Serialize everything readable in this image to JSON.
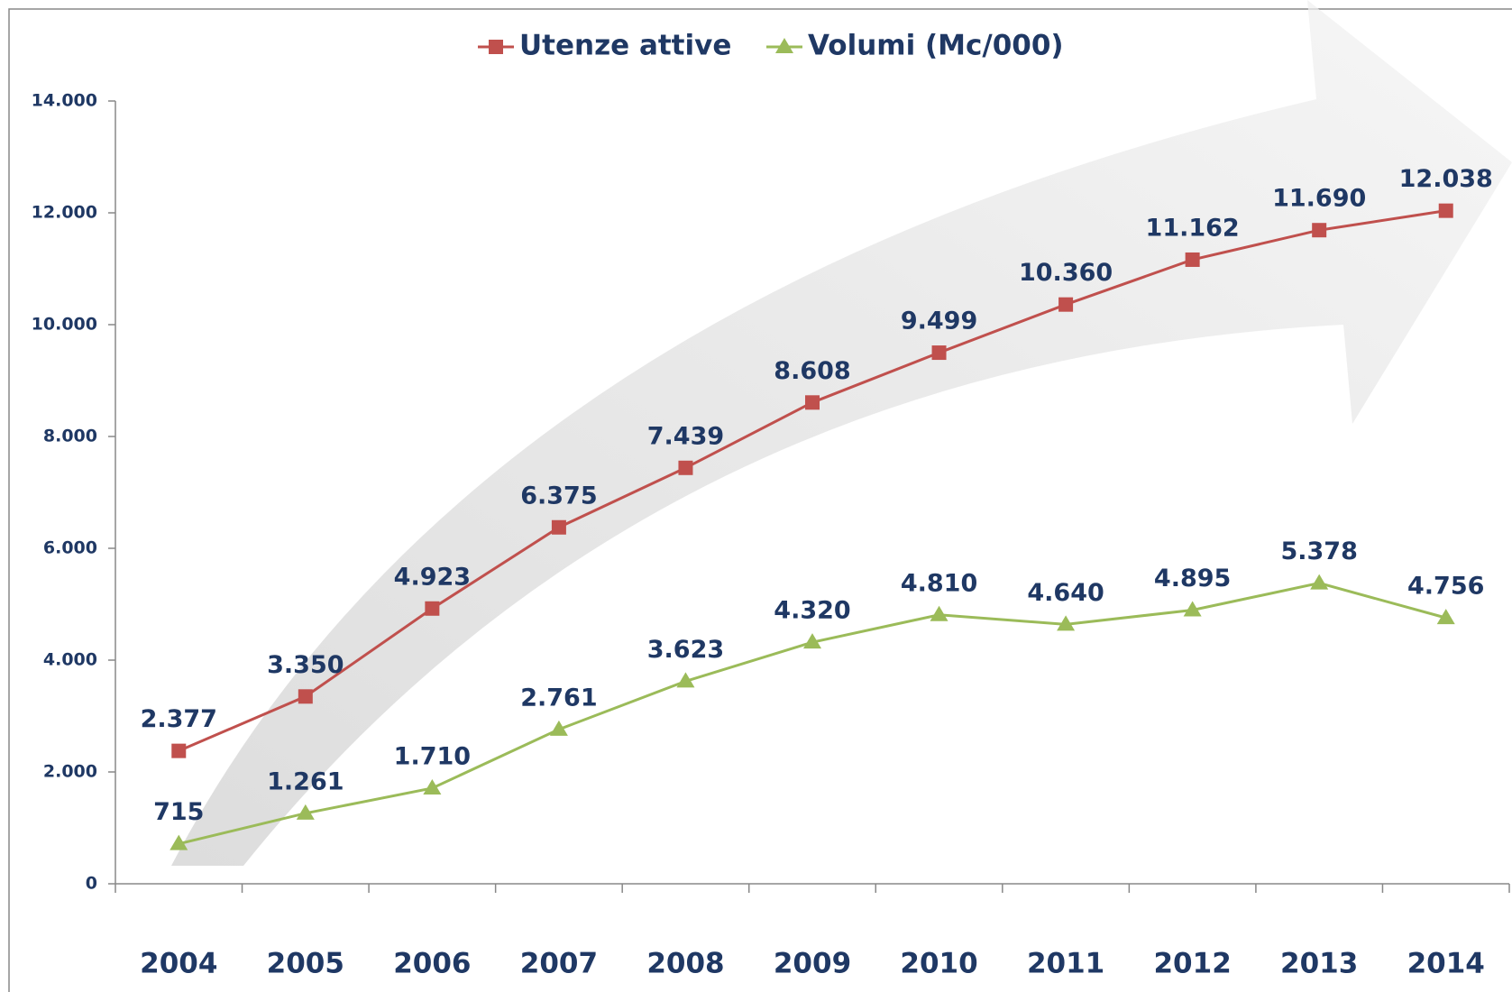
{
  "chart_data": {
    "type": "line",
    "categories": [
      "2004",
      "2005",
      "2006",
      "2007",
      "2008",
      "2009",
      "2010",
      "2011",
      "2012",
      "2013",
      "2014"
    ],
    "series": [
      {
        "name": "Utenze attive",
        "color": "#c0504d",
        "marker": "square",
        "values": [
          2377,
          3350,
          4923,
          6375,
          7439,
          8608,
          9499,
          10360,
          11162,
          11690,
          12038
        ],
        "value_labels": [
          "2.377",
          "3.350",
          "4.923",
          "6.375",
          "7.439",
          "8.608",
          "9.499",
          "10.360",
          "11.162",
          "11.690",
          "12.038"
        ]
      },
      {
        "name": "Volumi (Mc/000)",
        "color": "#9bbb59",
        "marker": "triangle",
        "values": [
          715,
          1261,
          1710,
          2761,
          3623,
          4320,
          4810,
          4640,
          4895,
          5378,
          4756
        ],
        "value_labels": [
          "715",
          "1.261",
          "1.710",
          "2.761",
          "3.623",
          "4.320",
          "4.810",
          "4.640",
          "4.895",
          "5.378",
          "4.756"
        ]
      }
    ],
    "ylim": [
      0,
      14000
    ],
    "yticks": [
      0,
      {
        "value": 2000,
        "label": "2.000"
      },
      {
        "value": 4000,
        "label": "4.000"
      },
      {
        "value": 6000,
        "label": "6.000"
      },
      {
        "value": 8000,
        "label": "8.000"
      },
      {
        "value": 10000,
        "label": "10.000"
      },
      {
        "value": 12000,
        "label": "12.000"
      },
      {
        "value": 14000,
        "label": "14.000"
      }
    ],
    "grid": false,
    "legend": "top"
  }
}
